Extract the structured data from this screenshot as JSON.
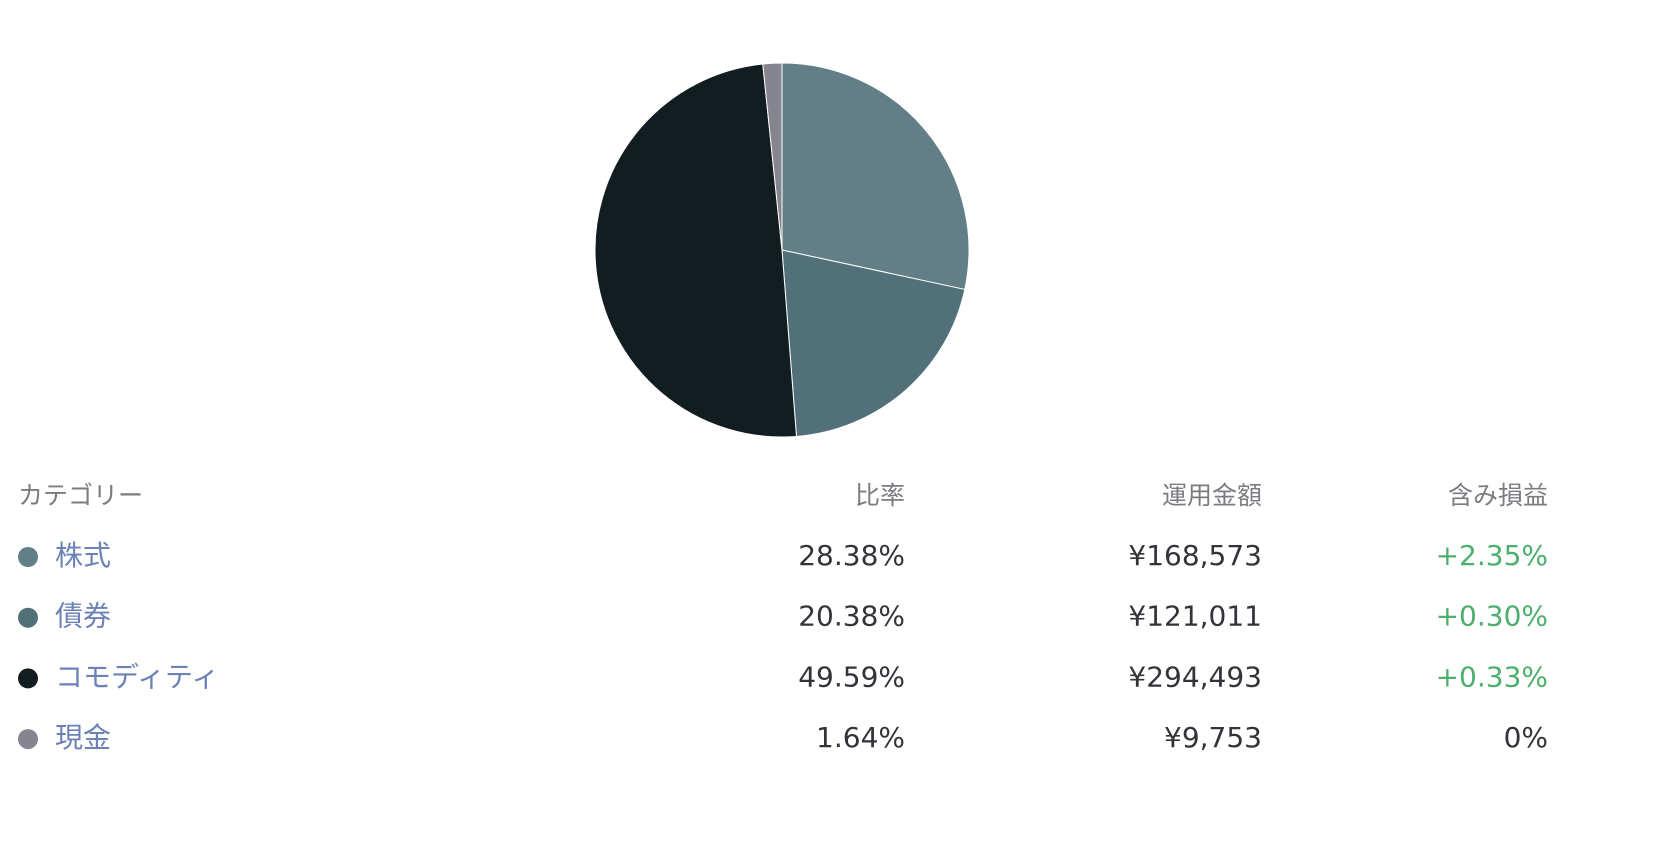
{
  "chart_data": {
    "type": "pie",
    "categories": [
      "株式",
      "債券",
      "コモディティ",
      "現金"
    ],
    "values": [
      28.38,
      20.38,
      49.59,
      1.64
    ],
    "value_labels": [
      "28.38%",
      "20.38%",
      "49.59%",
      "1.64%"
    ],
    "colors": [
      "#627f87",
      "#52707a",
      "#121d21",
      "#85848f"
    ]
  },
  "table": {
    "headers": [
      "カテゴリー",
      "比率",
      "運用金額",
      "含み損益"
    ],
    "rows": [
      [
        "¥168,573",
        "+2.35%"
      ],
      [
        "¥121,011",
        "+0.30%"
      ],
      [
        "¥294,493",
        "+0.33%"
      ],
      [
        "¥9,753",
        "0%"
      ]
    ]
  }
}
